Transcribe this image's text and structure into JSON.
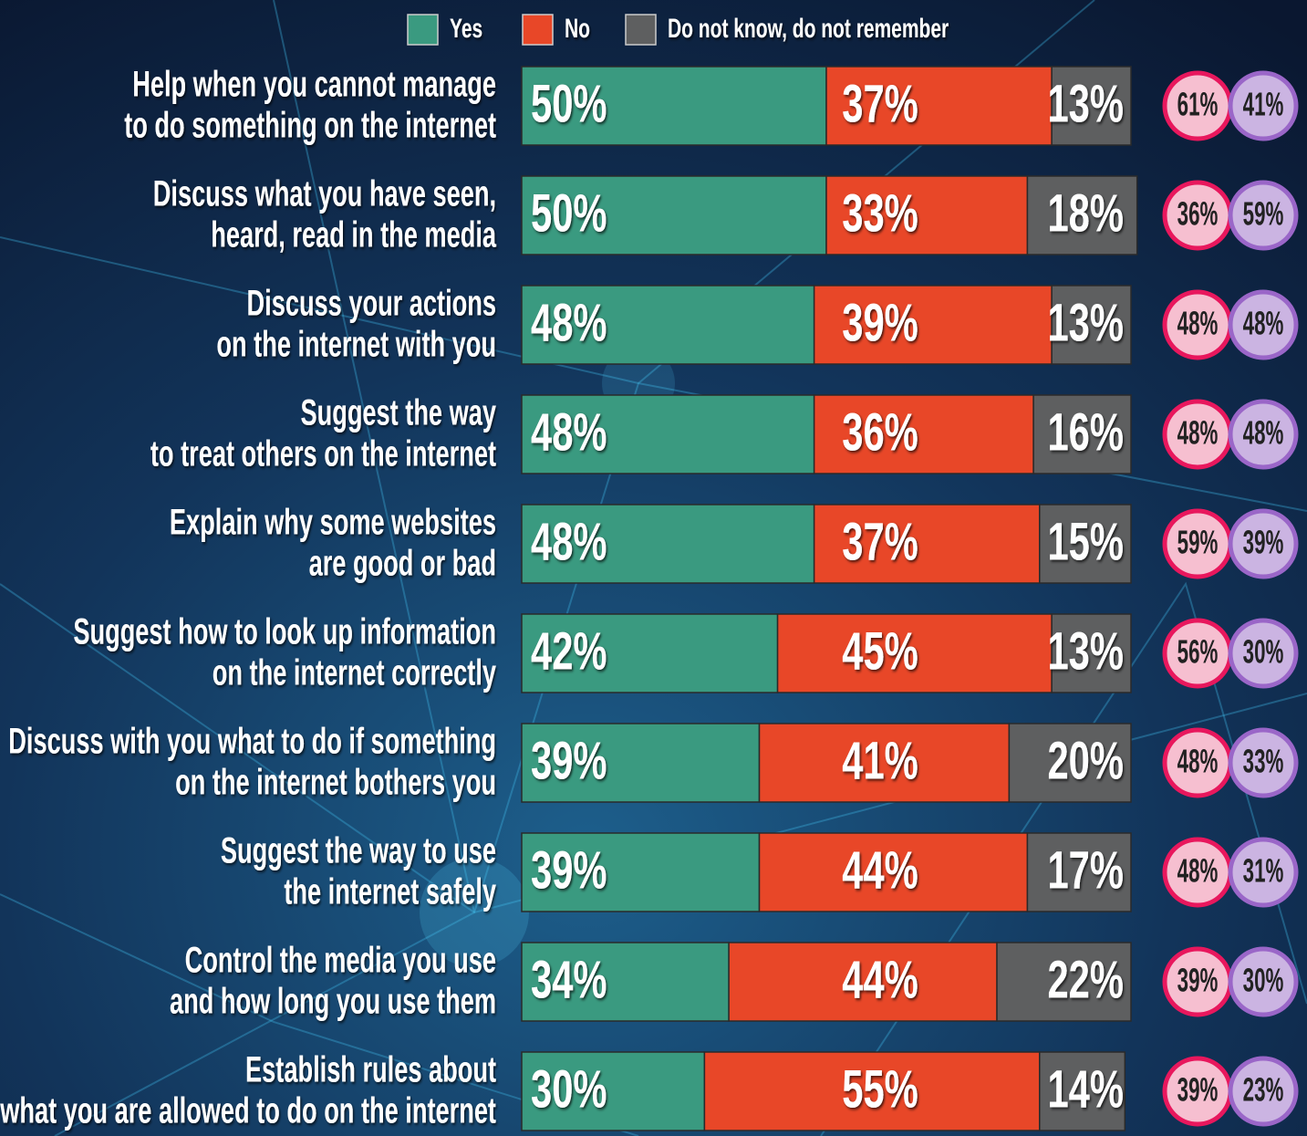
{
  "chart_data": {
    "type": "bar",
    "orientation": "horizontal",
    "stacked": true,
    "xlim": [
      0,
      100
    ],
    "categories": [
      [
        "Help when you cannot manage",
        "to do something on the internet"
      ],
      [
        "Discuss what you have seen,",
        "heard, read in the media"
      ],
      [
        "Discuss your actions",
        "on the internet with you"
      ],
      [
        "Suggest the way",
        "to treat others on the internet"
      ],
      [
        "Explain why some websites",
        "are good or bad"
      ],
      [
        "Suggest how to look up information",
        "on the internet correctly"
      ],
      [
        "Discuss with you what to do if something",
        "on the internet bothers you"
      ],
      [
        "Suggest the way to use",
        "the internet safely"
      ],
      [
        "Control the media you use",
        "and how long you use them"
      ],
      [
        "Establish rules about",
        "what you are allowed to do on the internet"
      ]
    ],
    "series": [
      {
        "name": "Yes",
        "color": "#3a9a80",
        "values": [
          50,
          50,
          48,
          48,
          48,
          42,
          39,
          39,
          34,
          30
        ],
        "value_labels": [
          "50%",
          "50%",
          "48%",
          "48%",
          "48%",
          "42%",
          "39%",
          "39%",
          "34%",
          "30%"
        ]
      },
      {
        "name": "No",
        "color": "#e84728",
        "values": [
          37,
          33,
          39,
          36,
          37,
          45,
          41,
          44,
          44,
          55
        ],
        "value_labels": [
          "37%",
          "33%",
          "39%",
          "36%",
          "37%",
          "45%",
          "41%",
          "44%",
          "44%",
          "55%"
        ]
      },
      {
        "name": "Do not know, do not remember",
        "color": "#5e5f60",
        "values": [
          13,
          18,
          13,
          16,
          15,
          13,
          20,
          17,
          22,
          14
        ],
        "value_labels": [
          "13%",
          "18%",
          "13%",
          "16%",
          "15%",
          "13%",
          "20%",
          "17%",
          "22%",
          "14%"
        ]
      }
    ],
    "markers": [
      {
        "color": "#e8175d",
        "fill": "#f6bfd0",
        "values": [
          61,
          36,
          48,
          48,
          59,
          56,
          48,
          48,
          39,
          39
        ],
        "value_labels": [
          "61%",
          "36%",
          "48%",
          "48%",
          "59%",
          "56%",
          "48%",
          "48%",
          "39%",
          "39%"
        ]
      },
      {
        "color": "#9a66c8",
        "fill": "#cbb4e2",
        "values": [
          41,
          59,
          48,
          48,
          39,
          30,
          33,
          31,
          30,
          23
        ],
        "value_labels": [
          "41%",
          "59%",
          "48%",
          "48%",
          "39%",
          "30%",
          "33%",
          "31%",
          "30%",
          "23%"
        ]
      }
    ]
  }
}
